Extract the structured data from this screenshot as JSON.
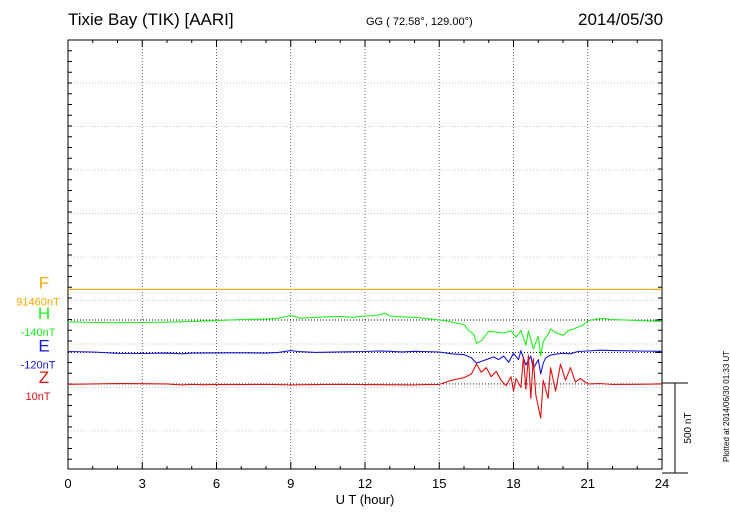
{
  "header": {
    "station": "Tixie Bay (TIK)  [AARI]",
    "coords": "GG ( 72.58°, 129.00°)",
    "date": "2014/05/30"
  },
  "plotted_note": "Plotted at 2014/06/30 01:33 UT",
  "chart_data": {
    "type": "line",
    "xlabel": "U T (hour)",
    "xlim": [
      0,
      24
    ],
    "xticks": [
      "0",
      "3",
      "6",
      "9",
      "12",
      "15",
      "18",
      "21",
      "24"
    ],
    "grid": true,
    "scale_bar": {
      "label": "500 nT",
      "value_nT": 500
    },
    "series": [
      {
        "name": "F",
        "baseline_label": "91460nT",
        "color": "#f5a800",
        "offset_in_panel_nT": 520,
        "points": [
          [
            0,
            0
          ],
          [
            6,
            0
          ],
          [
            12,
            0
          ],
          [
            18,
            0
          ],
          [
            24,
            0
          ]
        ]
      },
      {
        "name": "H",
        "baseline_label": "-140nT",
        "color": "#22ee22",
        "offset_in_panel_nT": 350,
        "points": [
          [
            0,
            -10
          ],
          [
            1,
            -14
          ],
          [
            2,
            -15
          ],
          [
            3,
            -14
          ],
          [
            4,
            -12
          ],
          [
            5,
            -8
          ],
          [
            5.5,
            -6
          ],
          [
            6,
            -4
          ],
          [
            6.5,
            0
          ],
          [
            7,
            2
          ],
          [
            7.5,
            4
          ],
          [
            8,
            5
          ],
          [
            8.5,
            10
          ],
          [
            9,
            25
          ],
          [
            9.4,
            10
          ],
          [
            10,
            15
          ],
          [
            10.5,
            18
          ],
          [
            11,
            20
          ],
          [
            11.5,
            15
          ],
          [
            12,
            22
          ],
          [
            12.5,
            25
          ],
          [
            12.8,
            38
          ],
          [
            13,
            22
          ],
          [
            13.5,
            18
          ],
          [
            14,
            15
          ],
          [
            14.5,
            8
          ],
          [
            15,
            0
          ],
          [
            15.3,
            -5
          ],
          [
            15.6,
            -15
          ],
          [
            16,
            -25
          ],
          [
            16.2,
            -60
          ],
          [
            16.4,
            -80
          ],
          [
            16.5,
            -130
          ],
          [
            16.7,
            -115
          ],
          [
            17,
            -62
          ],
          [
            17.3,
            -68
          ],
          [
            17.6,
            -72
          ],
          [
            17.9,
            -60
          ],
          [
            18.1,
            -95
          ],
          [
            18.3,
            -58
          ],
          [
            18.5,
            -140
          ],
          [
            18.6,
            -60
          ],
          [
            18.8,
            -160
          ],
          [
            19,
            -90
          ],
          [
            19.1,
            -200
          ],
          [
            19.2,
            -120
          ],
          [
            19.4,
            -80
          ],
          [
            19.5,
            -50
          ],
          [
            19.7,
            -70
          ],
          [
            20,
            -85
          ],
          [
            20.2,
            -60
          ],
          [
            20.5,
            -45
          ],
          [
            20.8,
            -30
          ],
          [
            21,
            -5
          ],
          [
            21.3,
            5
          ],
          [
            21.6,
            8
          ],
          [
            22,
            3
          ],
          [
            22.5,
            0
          ],
          [
            23,
            -3
          ],
          [
            24,
            -8
          ]
        ]
      },
      {
        "name": "E",
        "baseline_label": "-120nT",
        "color": "#1818d0",
        "offset_in_panel_nT": 170,
        "points": [
          [
            0,
            5
          ],
          [
            1,
            2
          ],
          [
            2,
            -5
          ],
          [
            3,
            -6
          ],
          [
            4,
            -4
          ],
          [
            4.6,
            -8
          ],
          [
            5,
            -4
          ],
          [
            6,
            -3
          ],
          [
            7,
            -2
          ],
          [
            8,
            -4
          ],
          [
            8.5,
            0
          ],
          [
            9,
            10
          ],
          [
            9.3,
            5
          ],
          [
            10,
            0
          ],
          [
            11,
            3
          ],
          [
            12,
            5
          ],
          [
            12.5,
            8
          ],
          [
            13,
            6
          ],
          [
            13.5,
            3
          ],
          [
            14,
            6
          ],
          [
            15,
            2
          ],
          [
            15.5,
            -8
          ],
          [
            16,
            -12
          ],
          [
            16.3,
            -30
          ],
          [
            16.5,
            -60
          ],
          [
            16.7,
            -50
          ],
          [
            17,
            -35
          ],
          [
            17.2,
            -25
          ],
          [
            17.4,
            -40
          ],
          [
            17.6,
            -20
          ],
          [
            17.8,
            -55
          ],
          [
            18,
            -5
          ],
          [
            18.2,
            -40
          ],
          [
            18.3,
            10
          ],
          [
            18.5,
            -70
          ],
          [
            18.7,
            -20
          ],
          [
            18.8,
            -90
          ],
          [
            19,
            -40
          ],
          [
            19.1,
            -120
          ],
          [
            19.2,
            -60
          ],
          [
            19.3,
            -30
          ],
          [
            19.5,
            -15
          ],
          [
            19.7,
            -10
          ],
          [
            20,
            -5
          ],
          [
            20.3,
            -8
          ],
          [
            20.6,
            5
          ],
          [
            21,
            8
          ],
          [
            21.5,
            12
          ],
          [
            22,
            10
          ],
          [
            23,
            8
          ],
          [
            24,
            6
          ]
        ]
      },
      {
        "name": "Z",
        "baseline_label": "10nT",
        "color": "#dd1111",
        "offset_in_panel_nT": -5,
        "points": [
          [
            0,
            -2
          ],
          [
            1,
            0
          ],
          [
            2,
            2
          ],
          [
            3,
            1
          ],
          [
            4,
            0
          ],
          [
            4.6,
            -6
          ],
          [
            5,
            -2
          ],
          [
            5.5,
            -5
          ],
          [
            6,
            -3
          ],
          [
            7,
            -4
          ],
          [
            8,
            -2
          ],
          [
            9,
            -6
          ],
          [
            10,
            -4
          ],
          [
            11,
            -2
          ],
          [
            12,
            -4
          ],
          [
            13,
            -5
          ],
          [
            14,
            -6
          ],
          [
            14.5,
            -4
          ],
          [
            15,
            -3
          ],
          [
            15.5,
            20
          ],
          [
            16,
            35
          ],
          [
            16.3,
            55
          ],
          [
            16.5,
            110
          ],
          [
            16.7,
            65
          ],
          [
            16.9,
            90
          ],
          [
            17.1,
            40
          ],
          [
            17.3,
            70
          ],
          [
            17.5,
            20
          ],
          [
            17.7,
            -10
          ],
          [
            17.9,
            40
          ],
          [
            18,
            -40
          ],
          [
            18.1,
            30
          ],
          [
            18.3,
            -20
          ],
          [
            18.4,
            150
          ],
          [
            18.5,
            -30
          ],
          [
            18.6,
            160
          ],
          [
            18.7,
            -80
          ],
          [
            18.8,
            140
          ],
          [
            18.9,
            -60
          ],
          [
            19.1,
            -190
          ],
          [
            19.2,
            20
          ],
          [
            19.4,
            -80
          ],
          [
            19.5,
            90
          ],
          [
            19.7,
            -40
          ],
          [
            19.9,
            110
          ],
          [
            20.1,
            20
          ],
          [
            20.3,
            90
          ],
          [
            20.5,
            10
          ],
          [
            20.7,
            30
          ],
          [
            21,
            0
          ],
          [
            21.5,
            2
          ],
          [
            22,
            -3
          ],
          [
            23,
            -2
          ],
          [
            24,
            0
          ]
        ]
      }
    ]
  }
}
